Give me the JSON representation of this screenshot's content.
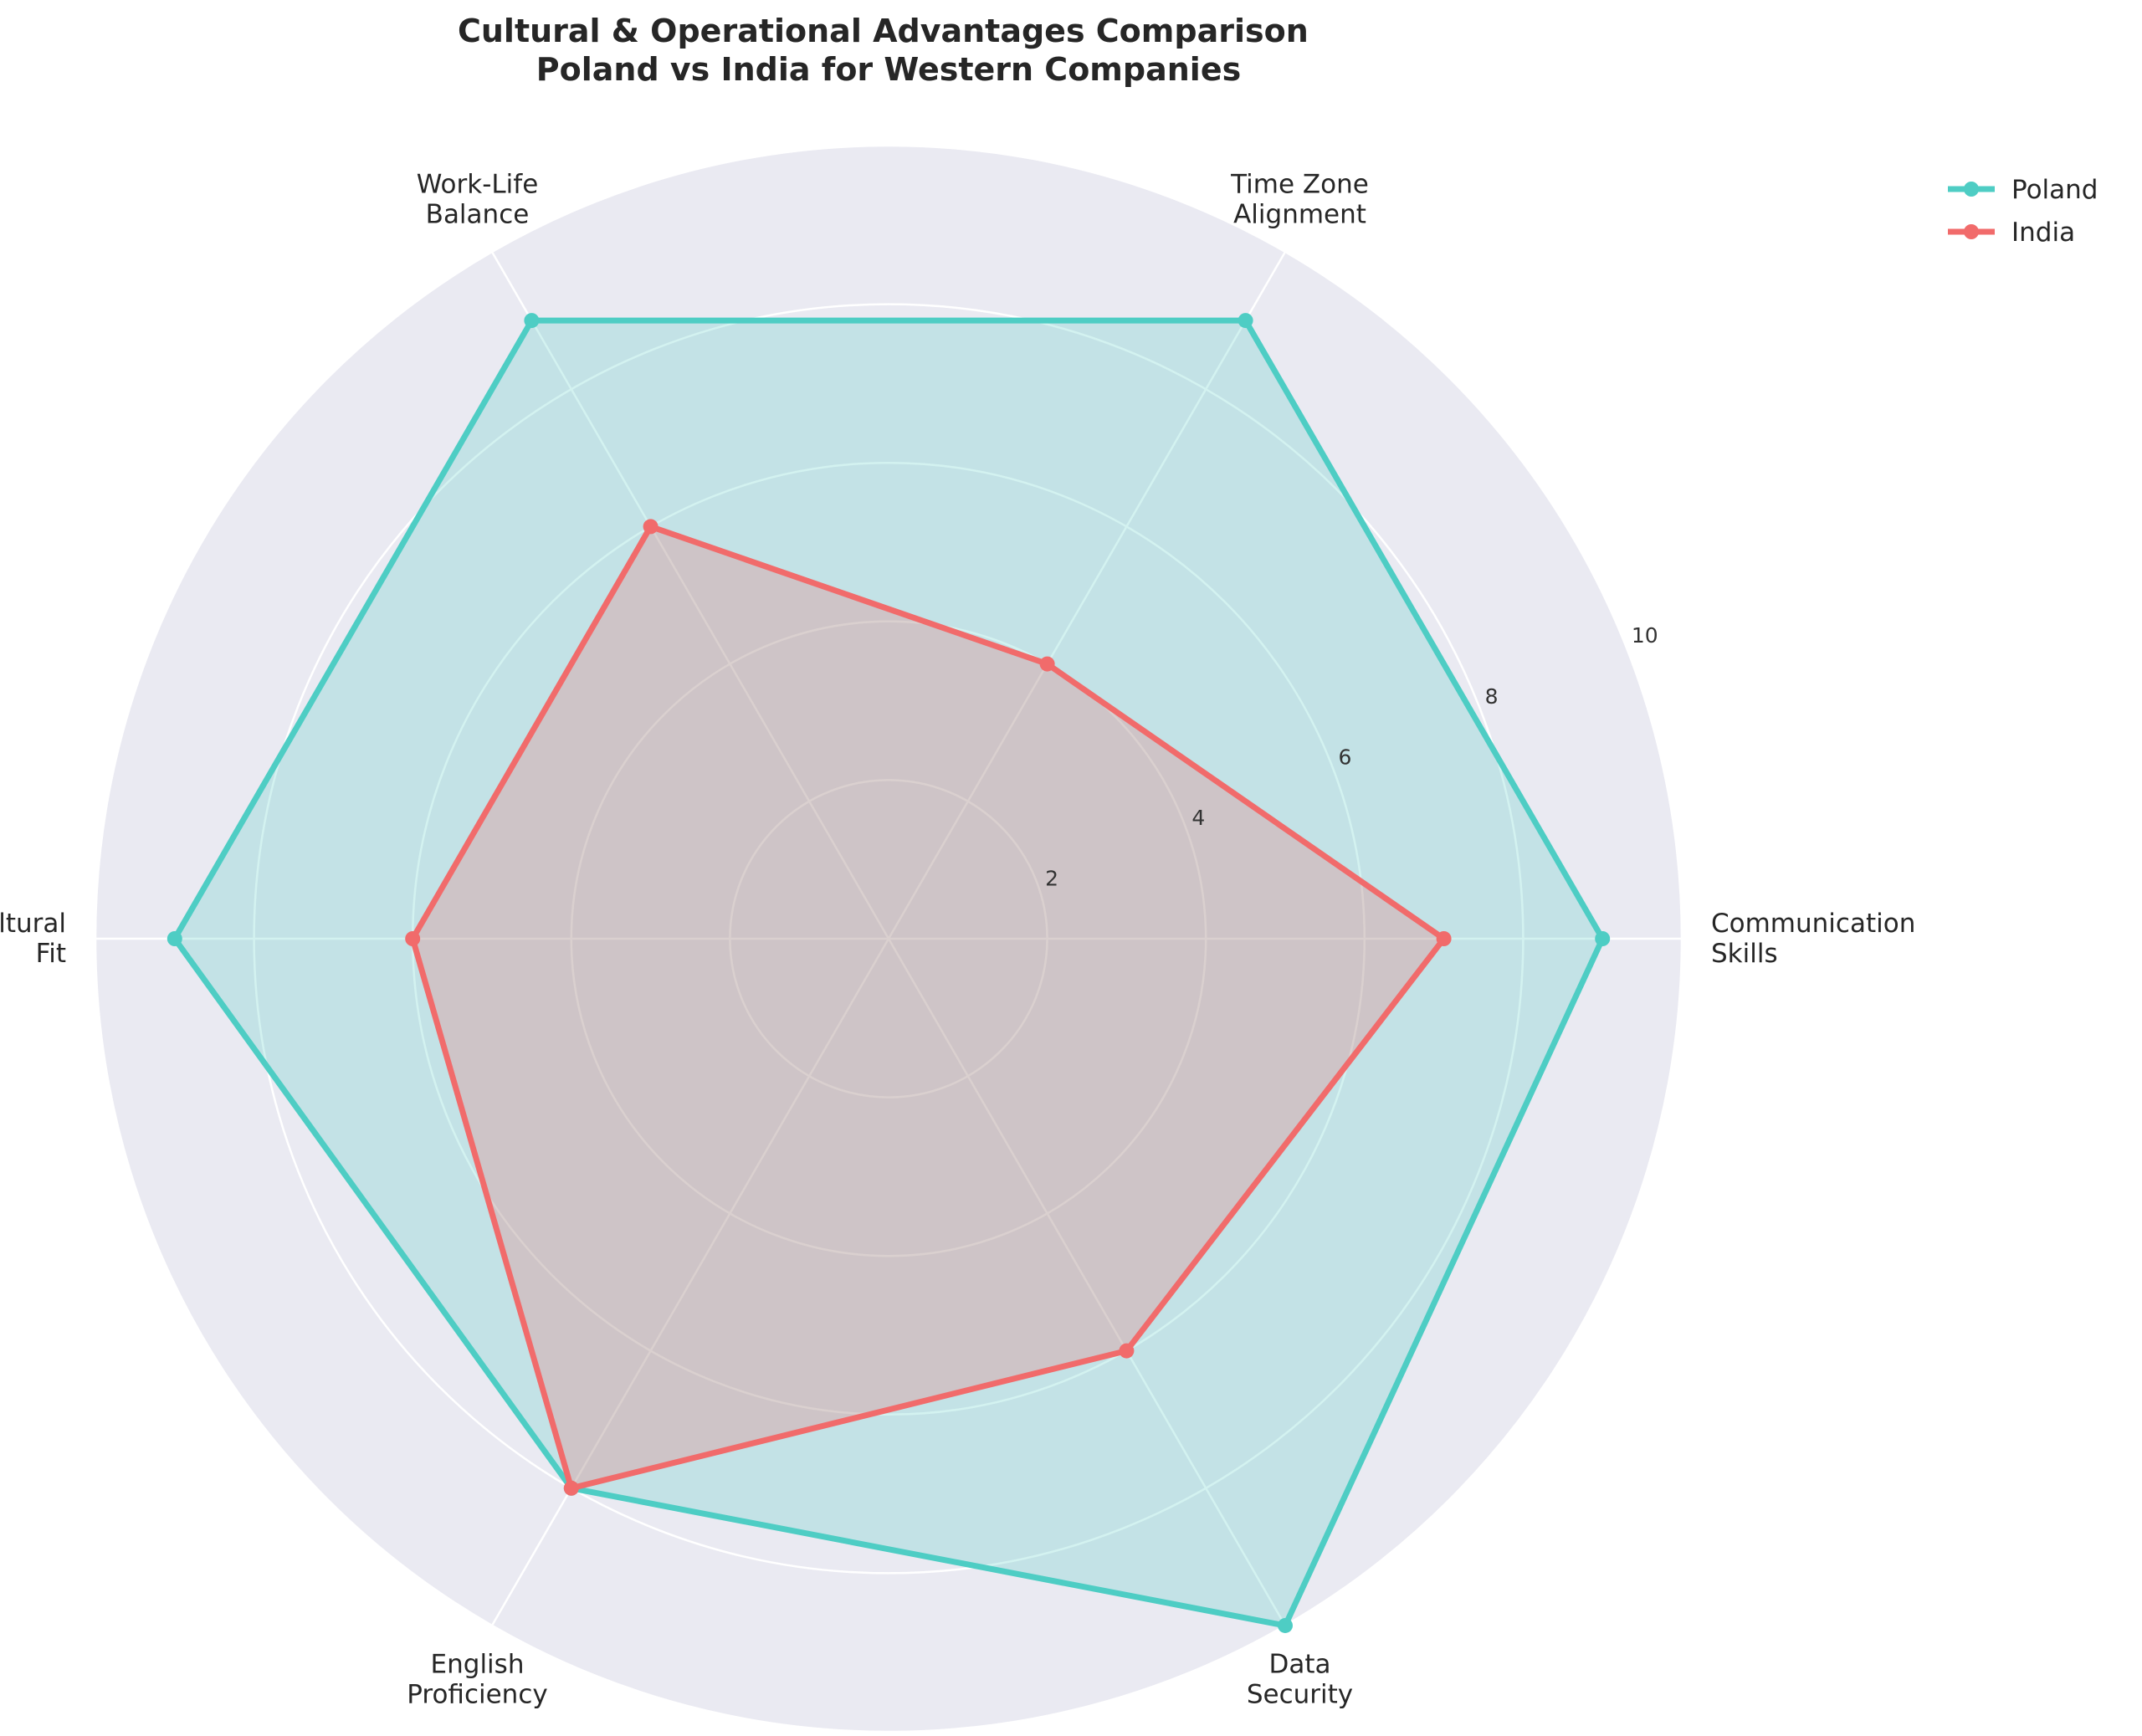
{
  "chart_data": {
    "type": "radar",
    "title": "Cultural & Operational Advantages Comparison\nPoland vs India for Western Companies",
    "categories": [
      "Communication\nSkills",
      "Time Zone\nAlignment",
      "Work-Life\nBalance",
      "Cultural\nFit",
      "English\nProficiency",
      "Data\nSecurity"
    ],
    "series": [
      {
        "name": "Poland",
        "color": "#4ECDC4",
        "values": [
          9,
          9,
          9,
          9,
          8,
          10
        ]
      },
      {
        "name": "India",
        "color": "#F16B6B",
        "values": [
          7,
          4,
          6,
          6,
          8,
          6
        ]
      }
    ],
    "rlim": [
      0,
      10
    ],
    "rticks": [
      2,
      4,
      6,
      8,
      10
    ],
    "grid": true,
    "legend_position": "top-right",
    "colors": {
      "background": "#EAEAF2",
      "grid": "#FFFFFF",
      "text": "#262626"
    }
  }
}
